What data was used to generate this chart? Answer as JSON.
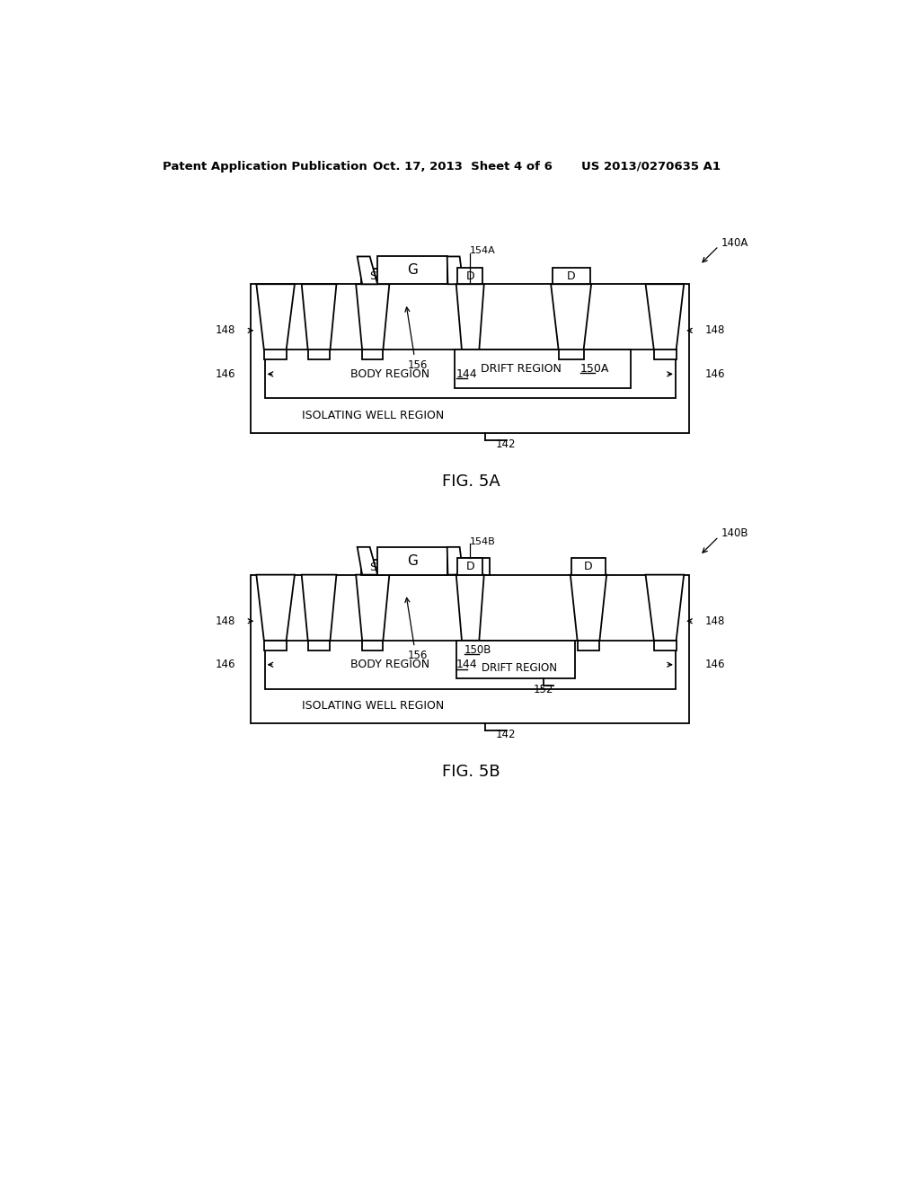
{
  "bg_color": "#ffffff",
  "header_text": "Patent Application Publication",
  "header_date": "Oct. 17, 2013  Sheet 4 of 6",
  "header_patent": "US 2013/0270635 A1",
  "fig5a_label": "FIG. 5A",
  "fig5b_label": "FIG. 5B"
}
